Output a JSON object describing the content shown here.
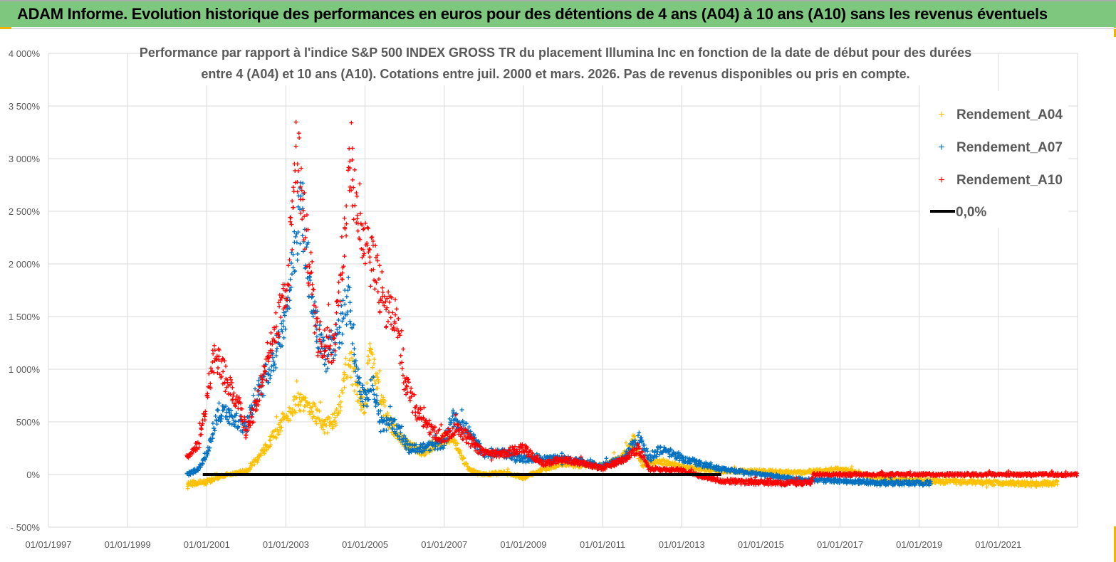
{
  "header": {
    "title": "ADAM Informe. Evolution historique des performances en euros pour des détentions de 4 ans (A04) à 10 ans (A10) sans les revenus éventuels"
  },
  "chart_data": {
    "type": "scatter",
    "title_lines": [
      "Performance par rapport à l'indice S&P 500 INDEX GROSS TR  du placement Illumina Inc en fonction de la date de début pour des durées",
      "entre 4 (A04) et 10 ans (A10). Cotations entre juil. 2000 et mars. 2026. Pas de revenus disponibles ou pris en compte."
    ],
    "xlabel": "",
    "ylabel": "",
    "xlim": [
      1997,
      2023
    ],
    "ylim": [
      -500,
      4000
    ],
    "grid": true,
    "legend_position": "top-right",
    "x_ticks": [
      {
        "v": 1997,
        "label": "01/01/1997"
      },
      {
        "v": 1999,
        "label": "01/01/1999"
      },
      {
        "v": 2001,
        "label": "01/01/2001"
      },
      {
        "v": 2003,
        "label": "01/01/2003"
      },
      {
        "v": 2005,
        "label": "01/01/2005"
      },
      {
        "v": 2007,
        "label": "01/01/2007"
      },
      {
        "v": 2009,
        "label": "01/01/2009"
      },
      {
        "v": 2011,
        "label": "01/01/2011"
      },
      {
        "v": 2013,
        "label": "01/01/2013"
      },
      {
        "v": 2015,
        "label": "01/01/2015"
      },
      {
        "v": 2017,
        "label": "01/01/2017"
      },
      {
        "v": 2019,
        "label": "01/01/2019"
      },
      {
        "v": 2021,
        "label": "01/01/2021"
      }
    ],
    "y_ticks": [
      {
        "v": 4000,
        "label": "4 000%"
      },
      {
        "v": 3500,
        "label": "3 500%"
      },
      {
        "v": 3000,
        "label": "3 000%"
      },
      {
        "v": 2500,
        "label": "2 500%"
      },
      {
        "v": 2000,
        "label": "2 000%"
      },
      {
        "v": 1500,
        "label": "1 500%"
      },
      {
        "v": 1000,
        "label": "1 000%"
      },
      {
        "v": 500,
        "label": "500%"
      },
      {
        "v": 0,
        "label": "0%"
      },
      {
        "v": -500,
        "label": "- 500%"
      }
    ],
    "series": [
      {
        "name": "Rendement_A04",
        "color": "#FFC000",
        "marker": "+",
        "points": [
          [
            2000.5,
            -90
          ],
          [
            2001,
            -70
          ],
          [
            2001.5,
            0
          ],
          [
            2002,
            30
          ],
          [
            2002.5,
            250
          ],
          [
            2003,
            550
          ],
          [
            2003.3,
            700
          ],
          [
            2003.6,
            650
          ],
          [
            2004,
            450
          ],
          [
            2004.3,
            550
          ],
          [
            2004.6,
            1100
          ],
          [
            2004.8,
            800
          ],
          [
            2005,
            600
          ],
          [
            2005.1,
            1150
          ],
          [
            2005.3,
            850
          ],
          [
            2005.6,
            500
          ],
          [
            2006,
            300
          ],
          [
            2006.5,
            200
          ],
          [
            2007,
            350
          ],
          [
            2007.3,
            300
          ],
          [
            2007.6,
            50
          ],
          [
            2008,
            0
          ],
          [
            2008.5,
            20
          ],
          [
            2009,
            -30
          ],
          [
            2009.5,
            50
          ],
          [
            2010,
            100
          ],
          [
            2011,
            80
          ],
          [
            2011.5,
            150
          ],
          [
            2011.8,
            330
          ],
          [
            2012,
            100
          ],
          [
            2012.5,
            120
          ],
          [
            2013,
            70
          ],
          [
            2014,
            30
          ],
          [
            2015,
            30
          ],
          [
            2016,
            20
          ],
          [
            2017,
            50
          ],
          [
            2017.5,
            10
          ],
          [
            2018,
            -40
          ],
          [
            2019,
            -60
          ],
          [
            2020,
            -70
          ],
          [
            2021,
            -80
          ],
          [
            2022,
            -90
          ],
          [
            2022.5,
            -80
          ]
        ]
      },
      {
        "name": "Rendement_A07",
        "color": "#0070C0",
        "marker": "+",
        "points": [
          [
            2000.5,
            0
          ],
          [
            2000.8,
            50
          ],
          [
            2001,
            200
          ],
          [
            2001.3,
            600
          ],
          [
            2001.6,
            550
          ],
          [
            2002,
            450
          ],
          [
            2002.3,
            800
          ],
          [
            2002.6,
            1000
          ],
          [
            2003,
            1500
          ],
          [
            2003.2,
            2000
          ],
          [
            2003.4,
            2600
          ],
          [
            2003.6,
            1800
          ],
          [
            2003.8,
            1400
          ],
          [
            2004,
            1100
          ],
          [
            2004.3,
            1300
          ],
          [
            2004.6,
            1700
          ],
          [
            2004.8,
            900
          ],
          [
            2005,
            700
          ],
          [
            2005.2,
            850
          ],
          [
            2005.4,
            500
          ],
          [
            2005.8,
            450
          ],
          [
            2006.1,
            250
          ],
          [
            2006.5,
            250
          ],
          [
            2007,
            300
          ],
          [
            2007.2,
            550
          ],
          [
            2007.5,
            450
          ],
          [
            2008,
            200
          ],
          [
            2008.5,
            200
          ],
          [
            2009,
            150
          ],
          [
            2009.5,
            150
          ],
          [
            2010,
            150
          ],
          [
            2011,
            80
          ],
          [
            2011.5,
            150
          ],
          [
            2011.9,
            350
          ],
          [
            2012.2,
            150
          ],
          [
            2012.5,
            250
          ],
          [
            2013,
            150
          ],
          [
            2014,
            50
          ],
          [
            2015,
            0
          ],
          [
            2016,
            -50
          ],
          [
            2017,
            -60
          ],
          [
            2018,
            -80
          ],
          [
            2019.3,
            -80
          ]
        ]
      },
      {
        "name": "Rendement_A10",
        "color": "#FF0000",
        "marker": "+",
        "points": [
          [
            2000.5,
            150
          ],
          [
            2000.8,
            300
          ],
          [
            2001,
            700
          ],
          [
            2001.2,
            1150
          ],
          [
            2001.5,
            900
          ],
          [
            2001.8,
            700
          ],
          [
            2002,
            400
          ],
          [
            2002.3,
            700
          ],
          [
            2002.6,
            1200
          ],
          [
            2003,
            1700
          ],
          [
            2003.3,
            3000
          ],
          [
            2003.6,
            2000
          ],
          [
            2003.8,
            1300
          ],
          [
            2004.2,
            1200
          ],
          [
            2004.5,
            2300
          ],
          [
            2004.6,
            3100
          ],
          [
            2004.9,
            2200
          ],
          [
            2005.2,
            2000
          ],
          [
            2005.5,
            1600
          ],
          [
            2005.8,
            1500
          ],
          [
            2006,
            900
          ],
          [
            2006.3,
            600
          ],
          [
            2006.7,
            400
          ],
          [
            2007,
            350
          ],
          [
            2007.3,
            450
          ],
          [
            2008,
            200
          ],
          [
            2008.5,
            200
          ],
          [
            2009,
            250
          ],
          [
            2009.5,
            100
          ],
          [
            2010,
            150
          ],
          [
            2011,
            60
          ],
          [
            2011.6,
            150
          ],
          [
            2011.9,
            250
          ],
          [
            2012.2,
            50
          ],
          [
            2013,
            40
          ],
          [
            2013.5,
            -20
          ],
          [
            2014,
            -60
          ],
          [
            2015,
            -80
          ],
          [
            2016,
            -80
          ],
          [
            2016.3,
            -70
          ],
          [
            2016.31,
            0
          ],
          [
            2023,
            0
          ]
        ]
      },
      {
        "name": "0,0%",
        "color": "#000000",
        "marker": "line",
        "points": [
          [
            2000.9,
            0
          ],
          [
            2014,
            0
          ]
        ]
      }
    ]
  }
}
